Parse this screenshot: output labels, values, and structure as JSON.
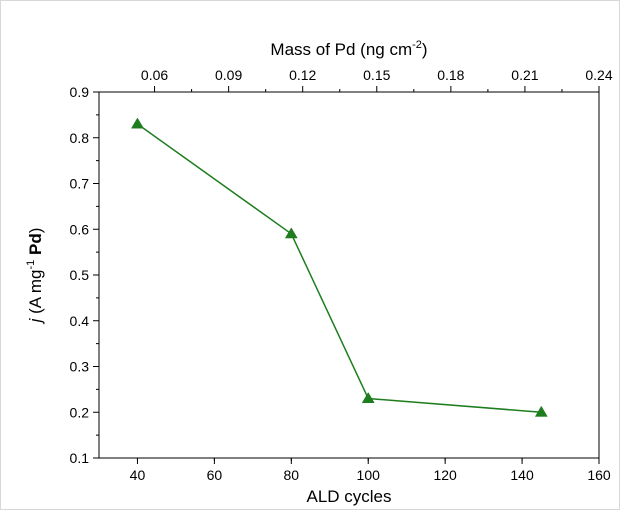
{
  "chart_data": {
    "type": "line",
    "xlabel": "ALD cycles",
    "x2label": {
      "text": "Mass of Pd (ng cm",
      "superscript": "-2",
      "suffix": ")"
    },
    "ylabel": {
      "italic": "j",
      "text": " (A mg",
      "superscript": "-1",
      "bold": "Pd",
      "suffix": ")"
    },
    "xlim": [
      30,
      160
    ],
    "ylim": [
      0.1,
      0.9
    ],
    "x2lim": [
      0.0375,
      0.24
    ],
    "xticks": [
      "40",
      "60",
      "80",
      "100",
      "120",
      "140",
      "160"
    ],
    "yticks": [
      "0.1",
      "0.2",
      "0.3",
      "0.4",
      "0.5",
      "0.6",
      "0.7",
      "0.8",
      "0.9"
    ],
    "x2ticks": [
      "0.06",
      "0.09",
      "0.12",
      "0.15",
      "0.18",
      "0.21",
      "0.24"
    ],
    "series": [
      {
        "x": [
          40,
          80,
          100,
          145
        ],
        "y": [
          0.83,
          0.59,
          0.23,
          0.2
        ],
        "color": "#1e7d1e",
        "marker": "triangle"
      }
    ],
    "grid": false,
    "legend": "none"
  }
}
